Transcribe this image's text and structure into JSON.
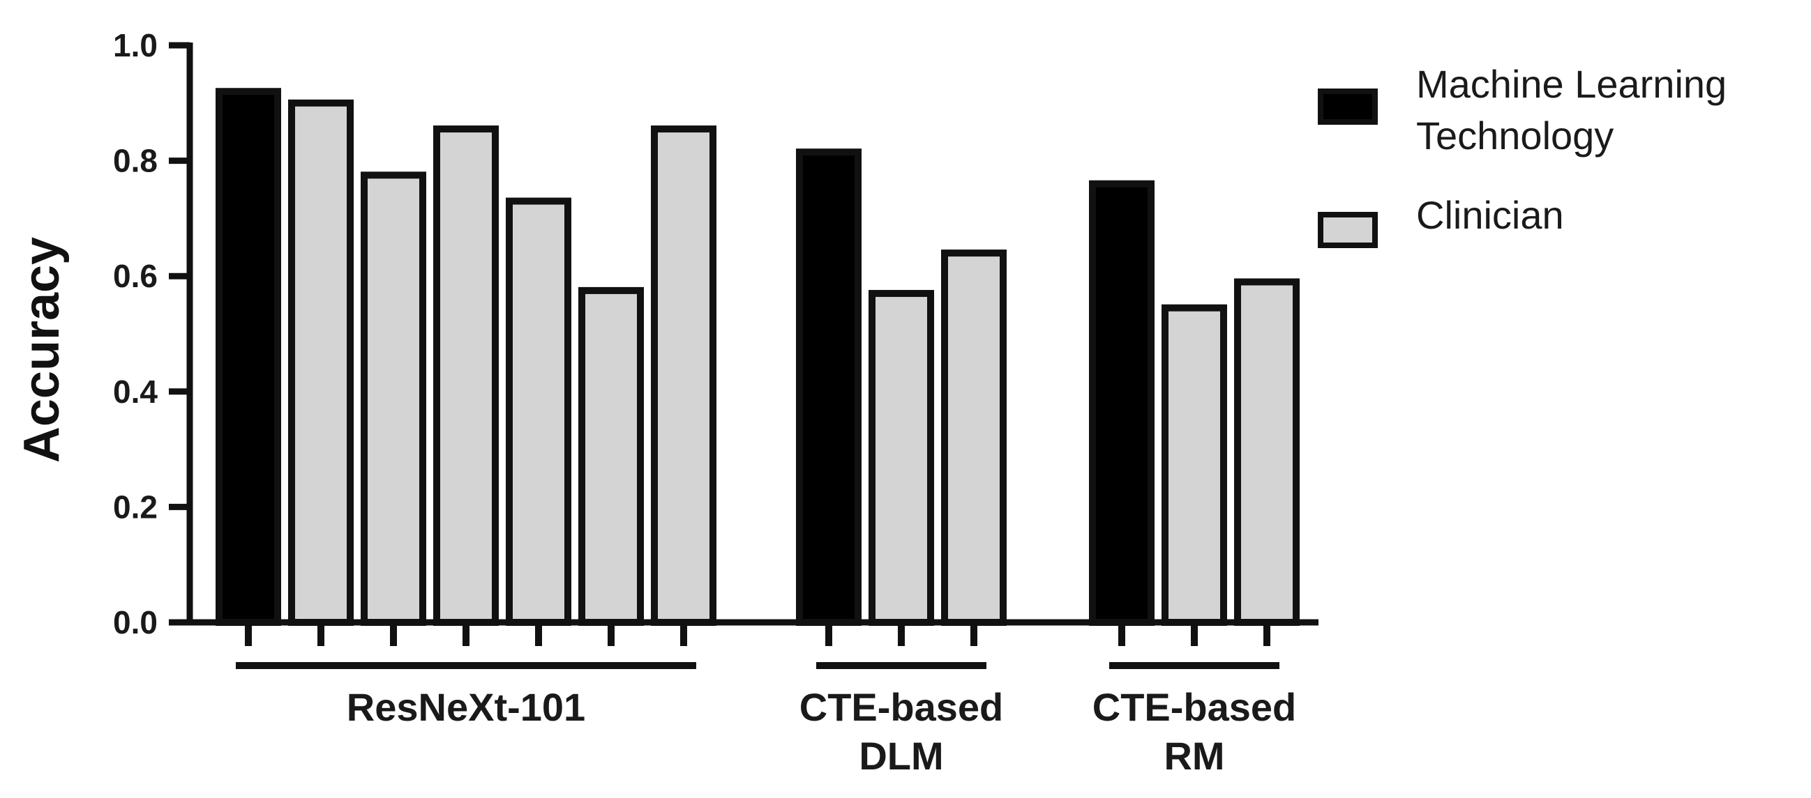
{
  "chart_data": {
    "type": "bar",
    "ylabel": "Accuracy",
    "ylim": [
      0,
      1.0
    ],
    "yticks": [
      "0.0",
      "0.2",
      "0.4",
      "0.6",
      "0.8",
      "1.0"
    ],
    "ytick_values": [
      0,
      0.2,
      0.4,
      0.6,
      0.8,
      1.0
    ],
    "legend": {
      "position": "top-right",
      "entries": [
        {
          "key": "machine",
          "lines": [
            "Machine Learning",
            "Technology"
          ],
          "color": "#000000"
        },
        {
          "key": "clinician",
          "lines": [
            "Clinician"
          ],
          "color": "#d4d4d4"
        }
      ]
    },
    "groups": [
      {
        "lines": [
          "ResNeXt-101"
        ],
        "bars": [
          {
            "series": "machine",
            "value": 0.92
          },
          {
            "series": "clinician",
            "value": 0.9
          },
          {
            "series": "clinician",
            "value": 0.775
          },
          {
            "series": "clinician",
            "value": 0.855
          },
          {
            "series": "clinician",
            "value": 0.73
          },
          {
            "series": "clinician",
            "value": 0.575
          },
          {
            "series": "clinician",
            "value": 0.855
          }
        ]
      },
      {
        "lines": [
          "CTE-based",
          "DLM"
        ],
        "bars": [
          {
            "series": "machine",
            "value": 0.815
          },
          {
            "series": "clinician",
            "value": 0.57
          },
          {
            "series": "clinician",
            "value": 0.64
          }
        ]
      },
      {
        "lines": [
          "CTE-based",
          "RM"
        ],
        "bars": [
          {
            "series": "machine",
            "value": 0.76
          },
          {
            "series": "clinician",
            "value": 0.545
          },
          {
            "series": "clinician",
            "value": 0.59
          }
        ]
      }
    ]
  }
}
